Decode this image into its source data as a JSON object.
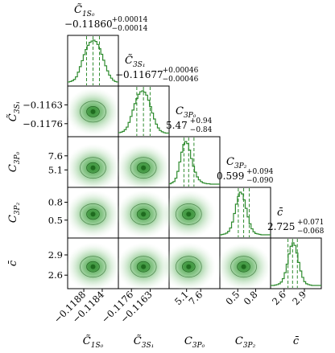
{
  "chart_data": {
    "type": "corner",
    "accent_color": "#2e8b2e",
    "params": [
      {
        "label": "C̃₁S₀",
        "stat": {
          "main": "−0.11860",
          "plus": "+0.00014",
          "minus": "−0.00014"
        },
        "ticks": [
          {
            "v": -0.1188,
            "t": "−0.1188"
          },
          {
            "v": -0.1184,
            "t": "−0.1184"
          }
        ],
        "range": [
          -0.11915,
          -0.11805
        ],
        "median": -0.1186,
        "lo": -0.11874,
        "hi": -0.11846,
        "hist": [
          0.02,
          0.03,
          0.05,
          0.08,
          0.14,
          0.25,
          0.38,
          0.52,
          0.66,
          0.78,
          0.88,
          0.95,
          0.98,
          1.0,
          0.97,
          0.9,
          0.8,
          0.67,
          0.53,
          0.4,
          0.28,
          0.18,
          0.11,
          0.06,
          0.03,
          0.02
        ]
      },
      {
        "label": "C̃₃S₁",
        "stat": {
          "main": "−0.11677",
          "plus": "+0.00046",
          "minus": "−0.00046"
        },
        "ticks": [
          {
            "v": -0.1176,
            "t": "−0.1176"
          },
          {
            "v": -0.1163,
            "t": "−0.1163"
          }
        ],
        "range": [
          -0.1185,
          -0.115
        ],
        "median": -0.11677,
        "lo": -0.11723,
        "hi": -0.11631,
        "hist": [
          0.02,
          0.03,
          0.05,
          0.09,
          0.15,
          0.26,
          0.4,
          0.55,
          0.7,
          0.82,
          0.92,
          0.98,
          1.0,
          0.97,
          0.9,
          0.78,
          0.63,
          0.48,
          0.34,
          0.22,
          0.13,
          0.07,
          0.04,
          0.02,
          0.01,
          0.01
        ]
      },
      {
        "label": "C³P₀",
        "stat": {
          "main": "5.47",
          "plus": "+0.94",
          "minus": "−0.84"
        },
        "ticks": [
          {
            "v": 5.1,
            "t": "5.1"
          },
          {
            "v": 7.6,
            "t": "7.6"
          }
        ],
        "range": [
          2.0,
          11.0
        ],
        "median": 5.47,
        "lo": 4.63,
        "hi": 6.41,
        "hist": [
          0.01,
          0.03,
          0.06,
          0.14,
          0.3,
          0.52,
          0.75,
          0.93,
          1.0,
          0.95,
          0.8,
          0.6,
          0.42,
          0.28,
          0.17,
          0.1,
          0.06,
          0.03,
          0.02,
          0.01,
          0.01,
          0.0,
          0.0,
          0.0,
          0.0,
          0.0
        ]
      },
      {
        "label": "C³P₂",
        "stat": {
          "main": "0.599",
          "plus": "+0.094",
          "minus": "−0.090"
        },
        "ticks": [
          {
            "v": 0.5,
            "t": "0.5"
          },
          {
            "v": 0.8,
            "t": "0.8"
          }
        ],
        "range": [
          0.2,
          1.05
        ],
        "median": 0.599,
        "lo": 0.509,
        "hi": 0.693,
        "hist": [
          0.0,
          0.01,
          0.02,
          0.04,
          0.08,
          0.16,
          0.3,
          0.5,
          0.72,
          0.9,
          1.0,
          0.96,
          0.82,
          0.62,
          0.42,
          0.26,
          0.14,
          0.07,
          0.03,
          0.02,
          0.01,
          0.0,
          0.0,
          0.0,
          0.0,
          0.0
        ]
      },
      {
        "label": "c̄",
        "stat": {
          "main": "2.725",
          "plus": "+0.071",
          "minus": "−0.068"
        },
        "ticks": [
          {
            "v": 2.6,
            "t": "2.6"
          },
          {
            "v": 2.9,
            "t": "2.9"
          }
        ],
        "range": [
          2.4,
          3.15
        ],
        "median": 2.725,
        "lo": 2.657,
        "hi": 2.796,
        "hist": [
          0.0,
          0.0,
          0.01,
          0.02,
          0.04,
          0.08,
          0.16,
          0.3,
          0.5,
          0.74,
          0.92,
          1.0,
          0.94,
          0.76,
          0.54,
          0.34,
          0.19,
          0.09,
          0.04,
          0.02,
          0.01,
          0.0,
          0.0,
          0.0,
          0.0,
          0.0
        ]
      }
    ]
  }
}
